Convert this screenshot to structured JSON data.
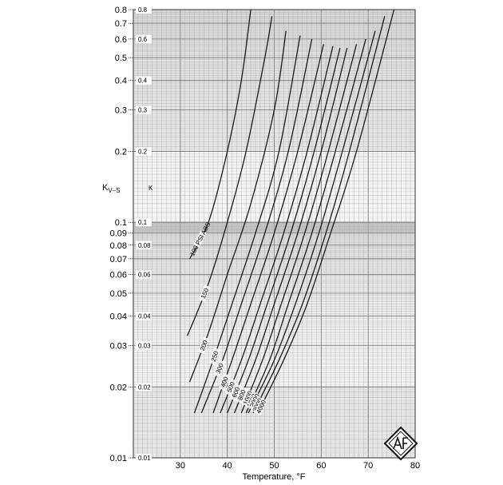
{
  "chart_data": {
    "type": "line",
    "title": "",
    "xlabel": "Temperature, °F",
    "ylabel": "K",
    "ylabel_sub": "V–S",
    "inner_ylabel": "K",
    "xlim": [
      20,
      80
    ],
    "ylim": [
      0.01,
      0.8
    ],
    "yscale": "log",
    "grid": true,
    "x_ticks": [
      30,
      40,
      50,
      60,
      70,
      80
    ],
    "x_tick_labels": [
      "30",
      "40",
      "50",
      "60",
      "70",
      "80"
    ],
    "y_ticks": [
      0.8,
      0.7,
      0.6,
      0.5,
      0.4,
      0.3,
      0.2,
      0.1,
      0.09,
      0.08,
      0.07,
      0.06,
      0.05,
      0.04,
      0.03,
      0.02,
      0.01
    ],
    "y_tick_labels": [
      "0.8",
      "0.7",
      "0.6",
      "0.5",
      "0.4",
      "0.3",
      "0.2",
      "0.1",
      "0.09",
      "0.08",
      "0.07",
      "0.06",
      "0.05",
      "0.04",
      "0.03",
      "0.02",
      "0.01"
    ],
    "y_inner_ticks": [
      0.8,
      0.6,
      0.4,
      0.3,
      0.2,
      0.1,
      0.08,
      0.06,
      0.04,
      0.03,
      0.02,
      0.01
    ],
    "y_inner_tick_labels": [
      "0.8",
      "0.6",
      "0.4",
      "0.3",
      "0.2",
      "0.1",
      "0.08",
      "0.06",
      "0.04",
      "0.03",
      "0.02",
      "0.01"
    ],
    "series": [
      {
        "name": "100 PSI ABS",
        "x": [
          32,
          36,
          40,
          43,
          45
        ],
        "y": [
          0.07,
          0.1,
          0.2,
          0.4,
          0.8
        ]
      },
      {
        "name": "150",
        "x": [
          31.5,
          36,
          40,
          44,
          48,
          49.5
        ],
        "y": [
          0.033,
          0.055,
          0.1,
          0.2,
          0.5,
          0.75
        ]
      },
      {
        "name": "200",
        "x": [
          32,
          36,
          40,
          45,
          50,
          52.5
        ],
        "y": [
          0.021,
          0.034,
          0.06,
          0.12,
          0.3,
          0.65
        ]
      },
      {
        "name": "250",
        "x": [
          33,
          37,
          41,
          46,
          51,
          55.5
        ],
        "y": [
          0.0155,
          0.026,
          0.045,
          0.09,
          0.2,
          0.62
        ]
      },
      {
        "name": "300",
        "x": [
          34.5,
          39,
          43,
          48,
          53,
          58
        ],
        "y": [
          0.0155,
          0.026,
          0.045,
          0.09,
          0.2,
          0.6
        ]
      },
      {
        "name": "400",
        "x": [
          37,
          41,
          45,
          50,
          55,
          60.5
        ],
        "y": [
          0.0155,
          0.026,
          0.045,
          0.09,
          0.2,
          0.57
        ]
      },
      {
        "name": "500",
        "x": [
          38.5,
          43,
          47,
          52,
          57,
          62.5
        ],
        "y": [
          0.0155,
          0.026,
          0.045,
          0.09,
          0.2,
          0.56
        ]
      },
      {
        "name": "600",
        "x": [
          40,
          44.5,
          48.5,
          53.5,
          58.5,
          64
        ],
        "y": [
          0.0155,
          0.026,
          0.045,
          0.09,
          0.2,
          0.55
        ]
      },
      {
        "name": "800",
        "x": [
          41.5,
          46,
          50,
          55,
          60,
          65.5
        ],
        "y": [
          0.0155,
          0.026,
          0.045,
          0.09,
          0.2,
          0.55
        ]
      },
      {
        "name": "1000",
        "x": [
          43,
          47.5,
          51.5,
          56.5,
          61.5,
          67.5
        ],
        "y": [
          0.0155,
          0.026,
          0.045,
          0.09,
          0.2,
          0.57
        ]
      },
      {
        "name": "1500",
        "x": [
          44,
          49,
          53,
          58,
          63,
          69.5
        ],
        "y": [
          0.0155,
          0.026,
          0.045,
          0.09,
          0.2,
          0.6
        ]
      },
      {
        "name": "2000",
        "x": [
          44.5,
          50,
          54.5,
          59.5,
          64.5,
          71.5
        ],
        "y": [
          0.0155,
          0.026,
          0.045,
          0.09,
          0.2,
          0.65
        ]
      },
      {
        "name": "3000",
        "x": [
          45.5,
          51,
          56,
          61,
          66,
          73.5
        ],
        "y": [
          0.0155,
          0.026,
          0.045,
          0.09,
          0.2,
          0.75
        ]
      },
      {
        "name": "4000",
        "x": [
          46.5,
          52,
          57,
          62,
          67.5,
          75.5
        ],
        "y": [
          0.0155,
          0.026,
          0.045,
          0.09,
          0.2,
          0.8
        ]
      }
    ],
    "curve_labels": [
      "100 PSI ABS",
      "150",
      "200",
      "250",
      "300",
      "400",
      "500",
      "600",
      "800",
      "1000",
      "1500",
      "2000",
      "3000",
      "4000"
    ]
  }
}
